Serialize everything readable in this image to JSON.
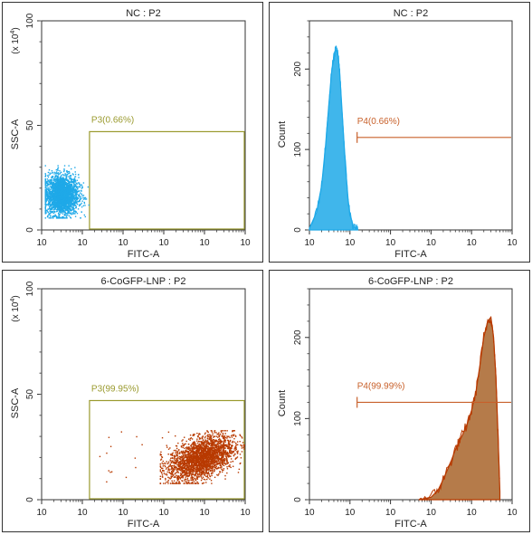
{
  "colors": {
    "nc": "#1fa9e8",
    "treated": "#b83a00",
    "treated_fill": "#a8642a",
    "gate_box": "#9a9a2e",
    "marker": "#c8602a"
  },
  "chart_data": [
    {
      "type": "scatter",
      "title": "NC : P2",
      "xlabel": "FITC-A",
      "ylabel": "SSC-A",
      "ylabel_unit": "(x 10",
      "ylabel_unit_exp": "4",
      "ylabel_unit_close": ")",
      "x_scale": "log",
      "xlim": [
        100,
        10000000
      ],
      "ylim": [
        0,
        100
      ],
      "x_ticks": [
        2,
        3,
        4,
        5,
        6,
        7
      ],
      "y_ticks": [
        0,
        50,
        100
      ],
      "gate": {
        "name": "P3(0.66%)",
        "x": [
          1500,
          10000000
        ],
        "y": [
          0,
          47
        ]
      },
      "cluster": {
        "x_center": 300,
        "y_center": 17,
        "x_range": [
          120,
          1400
        ],
        "y_range": [
          6,
          31
        ],
        "color": "nc"
      }
    },
    {
      "type": "area",
      "title": "NC : P2",
      "xlabel": "FITC-A",
      "ylabel": "Count",
      "x_scale": "log",
      "xlim": [
        100,
        10000000
      ],
      "ylim": [
        0,
        260
      ],
      "x_ticks": [
        2,
        3,
        4,
        5,
        6,
        7
      ],
      "y_ticks": [
        0,
        100,
        200
      ],
      "marker": {
        "name": "P4(0.66%)",
        "x": [
          1500,
          10000000
        ],
        "y": 115
      },
      "histogram": {
        "x": [
          100,
          150,
          200,
          250,
          300,
          350,
          400,
          450,
          500,
          550,
          600,
          700,
          800,
          900,
          1000,
          1200,
          1400,
          1600
        ],
        "y": [
          2,
          22,
          55,
          105,
          155,
          195,
          215,
          224,
          220,
          200,
          170,
          115,
          70,
          38,
          18,
          6,
          1,
          0
        ],
        "color": "nc"
      }
    },
    {
      "type": "scatter",
      "title": "6-CoGFP-LNP : P2",
      "xlabel": "FITC-A",
      "ylabel": "SSC-A",
      "ylabel_unit": "(x 10",
      "ylabel_unit_exp": "4",
      "ylabel_unit_close": ")",
      "x_scale": "log",
      "xlim": [
        100,
        10000000
      ],
      "ylim": [
        0,
        100
      ],
      "x_ticks": [
        2,
        3,
        4,
        5,
        6,
        7
      ],
      "y_ticks": [
        0,
        50,
        100
      ],
      "gate": {
        "name": "P3(99.95%)",
        "x": [
          1500,
          10000000
        ],
        "y": [
          0,
          47
        ]
      },
      "cluster": {
        "x_center": 800000,
        "y_center": 20,
        "x_range": [
          80000,
          10000000
        ],
        "y_range": [
          8,
          33
        ],
        "color": "treated"
      }
    },
    {
      "type": "area",
      "title": "6-CoGFP-LNP : P2",
      "xlabel": "FITC-A",
      "ylabel": "Count",
      "x_scale": "log",
      "xlim": [
        100,
        10000000
      ],
      "ylim": [
        0,
        260
      ],
      "x_ticks": [
        2,
        3,
        4,
        5,
        6,
        7
      ],
      "y_ticks": [
        0,
        100,
        200
      ],
      "marker": {
        "name": "P4(99.99%)",
        "x": [
          1500,
          10000000
        ],
        "y": 120
      },
      "histogram": {
        "x": [
          50000,
          100000,
          150000,
          200000,
          300000,
          400000,
          500000,
          600000,
          800000,
          1000000,
          1300000,
          1600000,
          2000000,
          2500000,
          3000000,
          3500000,
          4000000,
          4500000,
          5000000
        ],
        "y": [
          0,
          3,
          12,
          25,
          45,
          62,
          72,
          80,
          95,
          110,
          135,
          165,
          200,
          220,
          225,
          200,
          150,
          80,
          10
        ],
        "color": "treated_fill"
      }
    }
  ]
}
